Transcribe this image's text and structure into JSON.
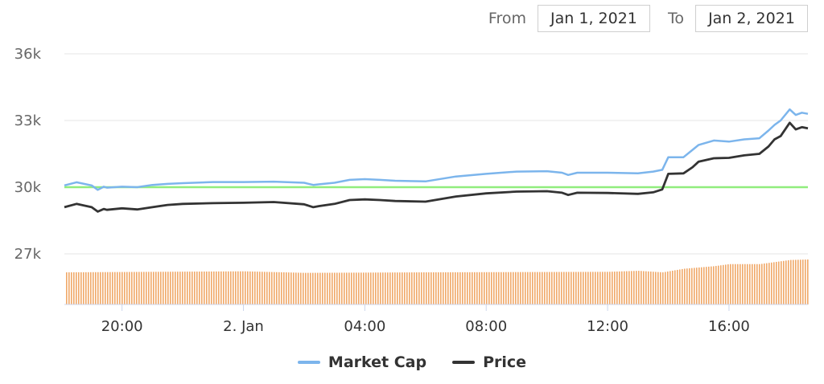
{
  "range_selector": {
    "from_label": "From",
    "from_value": "Jan 1, 2021",
    "to_label": "To",
    "to_value": "Jan 2, 2021"
  },
  "colors": {
    "market_cap": "#7cb5ec",
    "price": "#333333",
    "reference_line": "#90ed7d",
    "volume": "#f0a868",
    "grid": "#e6e6e6"
  },
  "chart_data": {
    "type": "line",
    "y_ticks": [
      "36k",
      "33k",
      "30k",
      "27k"
    ],
    "y_tick_values": [
      36000,
      33000,
      30000,
      27000
    ],
    "ylim": [
      25000,
      36000
    ],
    "x_ticks": [
      "20:00",
      "2. Jan",
      "04:00",
      "08:00",
      "12:00",
      "16:00"
    ],
    "x_tick_hours": [
      20,
      24,
      28,
      32,
      36,
      40
    ],
    "xlim_hours": [
      18.1,
      42.6
    ],
    "reference_line_value": 30000,
    "series": [
      {
        "name": "Market Cap",
        "x_hours": [
          18.1,
          18.5,
          19.0,
          19.2,
          19.4,
          19.5,
          20.0,
          20.5,
          21.0,
          21.5,
          22.0,
          23.0,
          24.0,
          25.0,
          26.0,
          26.3,
          26.5,
          27.0,
          27.5,
          28.0,
          28.5,
          29.0,
          30.0,
          31.0,
          32.0,
          33.0,
          34.0,
          34.5,
          34.7,
          35.0,
          36.0,
          37.0,
          37.5,
          37.8,
          38.0,
          38.5,
          38.8,
          39.0,
          39.5,
          40.0,
          40.5,
          41.0,
          41.3,
          41.5,
          41.7,
          42.0,
          42.2,
          42.4,
          42.6
        ],
        "values": [
          30080,
          30220,
          30080,
          29880,
          30020,
          29980,
          30020,
          30000,
          30100,
          30150,
          30180,
          30230,
          30230,
          30250,
          30200,
          30100,
          30130,
          30200,
          30330,
          30360,
          30330,
          30290,
          30260,
          30480,
          30600,
          30700,
          30720,
          30650,
          30550,
          30650,
          30650,
          30620,
          30700,
          30780,
          31350,
          31350,
          31680,
          31900,
          32100,
          32050,
          32150,
          32200,
          32550,
          32800,
          33000,
          33500,
          33250,
          33350,
          33300
        ]
      },
      {
        "name": "Price",
        "x_hours": [
          18.1,
          18.5,
          19.0,
          19.2,
          19.4,
          19.5,
          20.0,
          20.5,
          21.0,
          21.5,
          22.0,
          23.0,
          24.0,
          25.0,
          26.0,
          26.3,
          26.5,
          27.0,
          27.5,
          28.0,
          28.5,
          29.0,
          30.0,
          31.0,
          32.0,
          33.0,
          34.0,
          34.5,
          34.7,
          35.0,
          36.0,
          37.0,
          37.5,
          37.8,
          38.0,
          38.5,
          38.8,
          39.0,
          39.5,
          40.0,
          40.5,
          41.0,
          41.3,
          41.5,
          41.7,
          42.0,
          42.2,
          42.4,
          42.6
        ],
        "values": [
          29100,
          29250,
          29100,
          28900,
          29020,
          28980,
          29050,
          29000,
          29100,
          29200,
          29250,
          29280,
          29300,
          29330,
          29230,
          29100,
          29150,
          29250,
          29420,
          29450,
          29420,
          29380,
          29350,
          29580,
          29720,
          29800,
          29820,
          29750,
          29650,
          29750,
          29740,
          29700,
          29770,
          29900,
          30600,
          30620,
          30900,
          31150,
          31300,
          31320,
          31430,
          31500,
          31830,
          32150,
          32300,
          32900,
          32600,
          32700,
          32650
        ]
      }
    ],
    "volume": {
      "x_hours": [
        18.1,
        24.0,
        26.0,
        30.0,
        36.0,
        37.0,
        37.8,
        38.5,
        39.5,
        40.0,
        41.0,
        41.5,
        42.0,
        42.6
      ],
      "values": [
        1.0,
        1.02,
        0.99,
        1.0,
        1.01,
        1.03,
        1.0,
        1.07,
        1.12,
        1.16,
        1.16,
        1.2,
        1.24,
        1.25
      ]
    }
  }
}
